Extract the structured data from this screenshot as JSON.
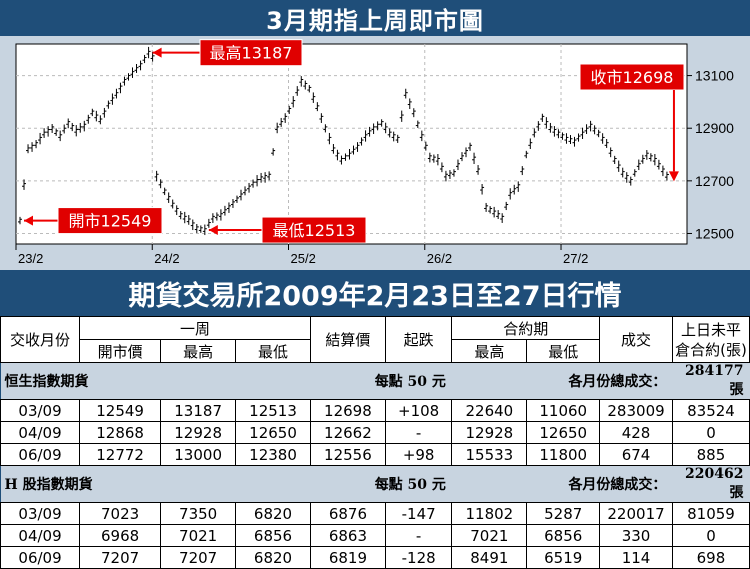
{
  "header": {
    "title": "3月期指上周即市圖"
  },
  "chart_data": {
    "type": "candlestick",
    "title": "3月期指上周即市圖",
    "x_labels": [
      "23/2",
      "24/2",
      "25/2",
      "26/2",
      "27/2"
    ],
    "y_ticks": [
      12500,
      12700,
      12900,
      13100
    ],
    "ylim": [
      12460,
      13220
    ],
    "annotations": {
      "high": {
        "label": "最高13187",
        "value": 13187
      },
      "open": {
        "label": "開市12549",
        "value": 12549
      },
      "low": {
        "label": "最低12513",
        "value": 12513
      },
      "close": {
        "label": "收市12698",
        "value": 12698
      }
    },
    "price_path": [
      [
        0,
        12549
      ],
      [
        2,
        12820
      ],
      [
        4,
        12840
      ],
      [
        6,
        12880
      ],
      [
        8,
        12900
      ],
      [
        10,
        12870
      ],
      [
        12,
        12920
      ],
      [
        14,
        12890
      ],
      [
        16,
        12910
      ],
      [
        18,
        12960
      ],
      [
        20,
        12930
      ],
      [
        22,
        12990
      ],
      [
        24,
        13030
      ],
      [
        26,
        13080
      ],
      [
        28,
        13110
      ],
      [
        30,
        13140
      ],
      [
        32,
        13187
      ],
      [
        33,
        13170
      ],
      [
        34,
        12720
      ],
      [
        36,
        12660
      ],
      [
        38,
        12610
      ],
      [
        40,
        12570
      ],
      [
        42,
        12550
      ],
      [
        44,
        12520
      ],
      [
        46,
        12513
      ],
      [
        48,
        12560
      ],
      [
        50,
        12570
      ],
      [
        52,
        12600
      ],
      [
        54,
        12630
      ],
      [
        56,
        12660
      ],
      [
        58,
        12690
      ],
      [
        60,
        12710
      ],
      [
        62,
        12720
      ],
      [
        64,
        12900
      ],
      [
        66,
        12940
      ],
      [
        68,
        13000
      ],
      [
        70,
        13080
      ],
      [
        72,
        13050
      ],
      [
        74,
        12980
      ],
      [
        76,
        12900
      ],
      [
        78,
        12820
      ],
      [
        80,
        12780
      ],
      [
        82,
        12800
      ],
      [
        84,
        12830
      ],
      [
        86,
        12870
      ],
      [
        88,
        12900
      ],
      [
        90,
        12920
      ],
      [
        92,
        12880
      ],
      [
        94,
        12860
      ],
      [
        96,
        13030
      ],
      [
        98,
        12960
      ],
      [
        100,
        12870
      ],
      [
        102,
        12790
      ],
      [
        104,
        12780
      ],
      [
        106,
        12720
      ],
      [
        108,
        12730
      ],
      [
        110,
        12790
      ],
      [
        112,
        12830
      ],
      [
        114,
        12740
      ],
      [
        116,
        12600
      ],
      [
        118,
        12580
      ],
      [
        120,
        12560
      ],
      [
        122,
        12650
      ],
      [
        124,
        12680
      ],
      [
        126,
        12800
      ],
      [
        128,
        12880
      ],
      [
        130,
        12940
      ],
      [
        132,
        12900
      ],
      [
        134,
        12880
      ],
      [
        136,
        12860
      ],
      [
        138,
        12850
      ],
      [
        140,
        12880
      ],
      [
        142,
        12910
      ],
      [
        144,
        12880
      ],
      [
        146,
        12840
      ],
      [
        148,
        12780
      ],
      [
        150,
        12730
      ],
      [
        152,
        12700
      ],
      [
        154,
        12760
      ],
      [
        156,
        12800
      ],
      [
        158,
        12780
      ],
      [
        160,
        12740
      ],
      [
        162,
        12698
      ]
    ]
  },
  "subtitle": "期貨交易所2009年2月23日至27日行情",
  "table": {
    "headers": {
      "month": "交收月份",
      "week": "一周",
      "open": "開市價",
      "high": "最高",
      "low": "最低",
      "settle": "結算價",
      "change": "起跌",
      "contract": "合約期",
      "c_high": "最高",
      "c_low": "最低",
      "volume": "成交",
      "oi": "上日未平倉合約(張)"
    },
    "sections": [
      {
        "name": "恒生指數期貨",
        "per_point": "每點 50 元",
        "total_label": "各月份總成交：",
        "total": "284177 張",
        "rows": [
          [
            "03/09",
            "12549",
            "13187",
            "12513",
            "12698",
            "+108",
            "22640",
            "11060",
            "283009",
            "83524"
          ],
          [
            "04/09",
            "12868",
            "12928",
            "12650",
            "12662",
            "-",
            "12928",
            "12650",
            "428",
            "0"
          ],
          [
            "06/09",
            "12772",
            "13000",
            "12380",
            "12556",
            "+98",
            "15533",
            "11800",
            "674",
            "885"
          ]
        ]
      },
      {
        "name": "H 股指數期貨",
        "per_point": "每點 50 元",
        "total_label": "各月份總成交：",
        "total": "220462 張",
        "rows": [
          [
            "03/09",
            "7023",
            "7350",
            "6820",
            "6876",
            "-147",
            "11802",
            "5287",
            "220017",
            "81059"
          ],
          [
            "04/09",
            "6968",
            "7021",
            "6856",
            "6863",
            "-",
            "7021",
            "6856",
            "330",
            "0"
          ],
          [
            "06/09",
            "7207",
            "7207",
            "6820",
            "6819",
            "-128",
            "8491",
            "6519",
            "114",
            "698"
          ]
        ]
      }
    ]
  }
}
